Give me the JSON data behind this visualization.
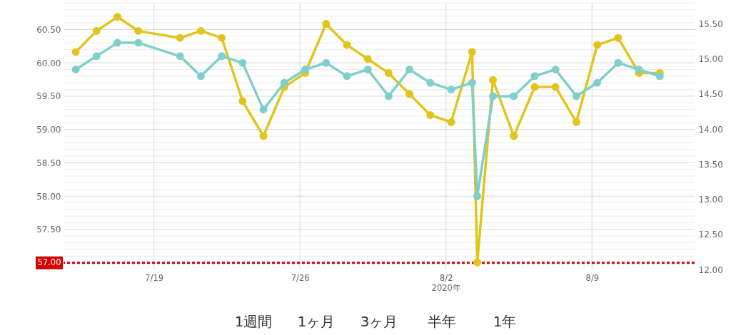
{
  "chart_data": {
    "type": "line",
    "x": [
      "2020-07-15T06:00",
      "2020-07-16T06:00",
      "2020-07-17T06:00",
      "2020-07-18T06:00",
      "2020-07-20T06:00",
      "2020-07-21T06:00",
      "2020-07-22T06:00",
      "2020-07-23T06:00",
      "2020-07-24T06:00",
      "2020-07-25T06:00",
      "2020-07-26T06:00",
      "2020-07-27T06:00",
      "2020-07-28T06:00",
      "2020-07-29T06:00",
      "2020-07-30T06:00",
      "2020-07-31T06:00",
      "2020-08-01T06:00",
      "2020-08-02T06:00",
      "2020-08-03T06:00",
      "2020-08-03T12:00",
      "2020-08-04T06:00",
      "2020-08-05T06:00",
      "2020-08-06T06:00",
      "2020-08-07T06:00",
      "2020-08-08T06:00",
      "2020-08-09T06:00",
      "2020-08-10T06:00",
      "2020-08-11T06:00",
      "2020-08-12T06:00"
    ],
    "series": [
      {
        "color": "#e3c41c",
        "axis": "y2",
        "values": [
          15.1,
          15.4,
          15.6,
          15.4,
          15.3,
          15.4,
          15.3,
          14.4,
          13.9,
          14.6,
          14.8,
          15.5,
          15.2,
          15.0,
          14.8,
          14.5,
          14.2,
          14.1,
          15.1,
          12.1,
          14.7,
          13.9,
          14.6,
          14.6,
          14.1,
          15.2,
          15.3,
          14.8,
          14.8
        ]
      },
      {
        "color": "#7fcfcc",
        "values": [
          59.9,
          60.1,
          60.3,
          60.3,
          60.1,
          59.8,
          60.1,
          60.0,
          59.3,
          59.7,
          59.9,
          60.0,
          59.8,
          59.9,
          59.5,
          59.9,
          59.7,
          59.6,
          59.7,
          58.0,
          59.5,
          59.5,
          59.8,
          59.9,
          59.5,
          59.7,
          60.0,
          59.9,
          59.8
        ]
      }
    ],
    "xlim": [
      "2020-07-14T16:00",
      "2020-08-13T22:00"
    ],
    "xticks": [
      {
        "value": "2020-07-19",
        "label": "7/19"
      },
      {
        "value": "2020-07-26",
        "label": "7/26"
      },
      {
        "value": "2020-08-02",
        "label": "8/2\n2020年"
      },
      {
        "value": "2020-08-09",
        "label": "8/9"
      }
    ],
    "ylim": [
      56.9,
      60.9
    ],
    "yticks": [
      {
        "value": 57,
        "label": null
      },
      {
        "value": 57.1,
        "label": null
      },
      {
        "value": 57.2,
        "label": null
      },
      {
        "value": 57.3,
        "label": null
      },
      {
        "value": 57.4,
        "label": null
      },
      {
        "value": 57.5,
        "label": "57.50"
      },
      {
        "value": 57.6,
        "label": null
      },
      {
        "value": 57.7,
        "label": null
      },
      {
        "value": 57.8,
        "label": null
      },
      {
        "value": 57.9,
        "label": null
      },
      {
        "value": 58,
        "label": "58.00"
      },
      {
        "value": 58.1,
        "label": null
      },
      {
        "value": 58.2,
        "label": null
      },
      {
        "value": 58.3,
        "label": null
      },
      {
        "value": 58.4,
        "label": null
      },
      {
        "value": 58.5,
        "label": "58.50"
      },
      {
        "value": 58.6,
        "label": null
      },
      {
        "value": 58.7,
        "label": null
      },
      {
        "value": 58.8,
        "label": null
      },
      {
        "value": 58.9,
        "label": null
      },
      {
        "value": 59,
        "label": "59.00"
      },
      {
        "value": 59.1,
        "label": null
      },
      {
        "value": 59.2,
        "label": null
      },
      {
        "value": 59.3,
        "label": null
      },
      {
        "value": 59.4,
        "label": null
      },
      {
        "value": 59.5,
        "label": "59.50"
      },
      {
        "value": 59.6,
        "label": null
      },
      {
        "value": 59.7,
        "label": null
      },
      {
        "value": 59.8,
        "label": null
      },
      {
        "value": 59.9,
        "label": null
      },
      {
        "value": 60,
        "label": "60.00"
      },
      {
        "value": 60.1,
        "label": null
      },
      {
        "value": 60.2,
        "label": null
      },
      {
        "value": 60.3,
        "label": null
      },
      {
        "value": 60.4,
        "label": null
      },
      {
        "value": 60.5,
        "label": "60.50"
      },
      {
        "value": 60.6,
        "label": null
      },
      {
        "value": 60.7,
        "label": null
      },
      {
        "value": 60.8,
        "label": null
      },
      {
        "value": 60.9,
        "label": null
      }
    ],
    "y2lim": [
      12.0,
      15.8
    ],
    "y2ticks": [
      {
        "value": 12,
        "label": "12.00"
      },
      {
        "value": 12.5,
        "label": "12.50"
      },
      {
        "value": 13,
        "label": "13.00"
      },
      {
        "value": 13.5,
        "label": "13.50"
      },
      {
        "value": 14,
        "label": "14.00"
      },
      {
        "value": 14.5,
        "label": "14.50"
      },
      {
        "value": 15,
        "label": "15.00"
      },
      {
        "value": 15.5,
        "label": "15.50"
      }
    ],
    "ref_lines": [
      {
        "axis": "y",
        "value": 57,
        "label": "57.00",
        "color": "#d50000",
        "line_style": "dotted"
      }
    ],
    "grid": true,
    "marker": "circle",
    "line_style": "solid",
    "annotations": [
      "1週間",
      "1ヶ月",
      "3ヶ月",
      "半年",
      "1年"
    ]
  }
}
